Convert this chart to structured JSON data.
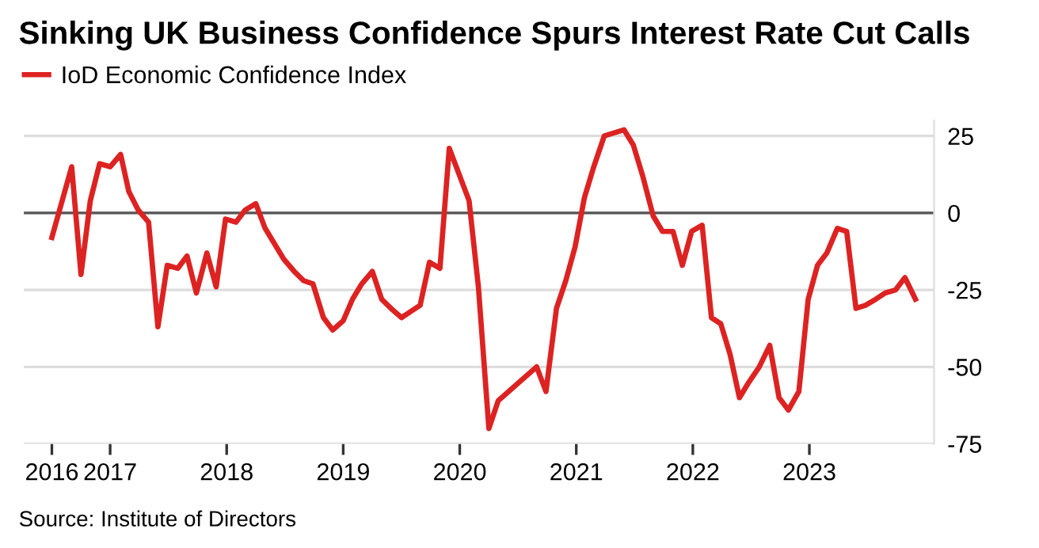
{
  "chart_data": {
    "type": "line",
    "title": "Sinking UK Business Confidence Spurs Interest Rate Cut Calls",
    "annotations": [
      "Source: Institute of Directors"
    ],
    "legend": "top left",
    "grid": "y",
    "line_style": "solid",
    "marker": "none",
    "xlim": [
      2016.26,
      2024.07
    ],
    "ylim": [
      -75,
      30
    ],
    "xticks": [
      {
        "value": 2016.5,
        "label": "2016"
      },
      {
        "value": 2017,
        "label": "2017"
      },
      {
        "value": 2018,
        "label": "2018"
      },
      {
        "value": 2019,
        "label": "2019"
      },
      {
        "value": 2020,
        "label": "2020"
      },
      {
        "value": 2021,
        "label": "2021"
      },
      {
        "value": 2022,
        "label": "2022"
      },
      {
        "value": 2023,
        "label": "2023"
      }
    ],
    "yticks": [
      25,
      0,
      -25,
      -50,
      -75
    ],
    "ref_lines": [
      {
        "axis": "y",
        "value": 0,
        "color": "#555555"
      }
    ],
    "series": [
      {
        "name": "IoD Economic Confidence Index",
        "color": "#dd2222",
        "x": [
          2016.5,
          2016.67,
          2016.75,
          2016.83,
          2016.91,
          2017.0,
          2017.09,
          2017.16,
          2017.24,
          2017.33,
          2017.41,
          2017.49,
          2017.58,
          2017.66,
          2017.74,
          2017.83,
          2017.91,
          2017.99,
          2018.08,
          2018.16,
          2018.25,
          2018.33,
          2018.41,
          2018.49,
          2018.58,
          2018.66,
          2018.74,
          2018.83,
          2018.91,
          2019.0,
          2019.08,
          2019.16,
          2019.25,
          2019.33,
          2019.41,
          2019.5,
          2019.58,
          2019.66,
          2019.74,
          2019.83,
          2019.91,
          2020.08,
          2020.16,
          2020.25,
          2020.33,
          2020.54,
          2020.66,
          2020.74,
          2020.83,
          2020.91,
          2020.99,
          2021.07,
          2021.15,
          2021.24,
          2021.41,
          2021.49,
          2021.57,
          2021.66,
          2021.74,
          2021.83,
          2021.91,
          2021.99,
          2022.08,
          2022.16,
          2022.24,
          2022.32,
          2022.4,
          2022.48,
          2022.57,
          2022.66,
          2022.74,
          2022.82,
          2022.91,
          2022.99,
          2023.07,
          2023.15,
          2023.24,
          2023.32,
          2023.4,
          2023.48,
          2023.57,
          2023.65,
          2023.74,
          2023.82,
          2023.91
        ],
        "values": [
          -8,
          15,
          -20,
          4,
          16,
          15,
          19,
          7,
          1,
          -3,
          -37,
          -17,
          -18,
          -14,
          -26,
          -13,
          -24,
          -2,
          -3,
          1,
          3,
          -5,
          -10,
          -15,
          -19,
          -22,
          -23,
          -34,
          -38,
          -35,
          -28,
          -23,
          -19,
          -28,
          -31,
          -34,
          -32,
          -30,
          -16,
          -18,
          21,
          4,
          -24,
          -70,
          -61,
          -54,
          -50,
          -58,
          -31,
          -22,
          -11,
          5,
          15,
          25,
          27,
          22,
          12,
          -1,
          -6,
          -6,
          -17,
          -6,
          -4,
          -34,
          -36,
          -46,
          -60,
          -55,
          -50,
          -43,
          -60,
          -64,
          -58,
          -28,
          -17,
          -13,
          -5,
          -6,
          -31,
          -30,
          -28,
          -26,
          -25,
          -21,
          -28
        ]
      }
    ]
  }
}
